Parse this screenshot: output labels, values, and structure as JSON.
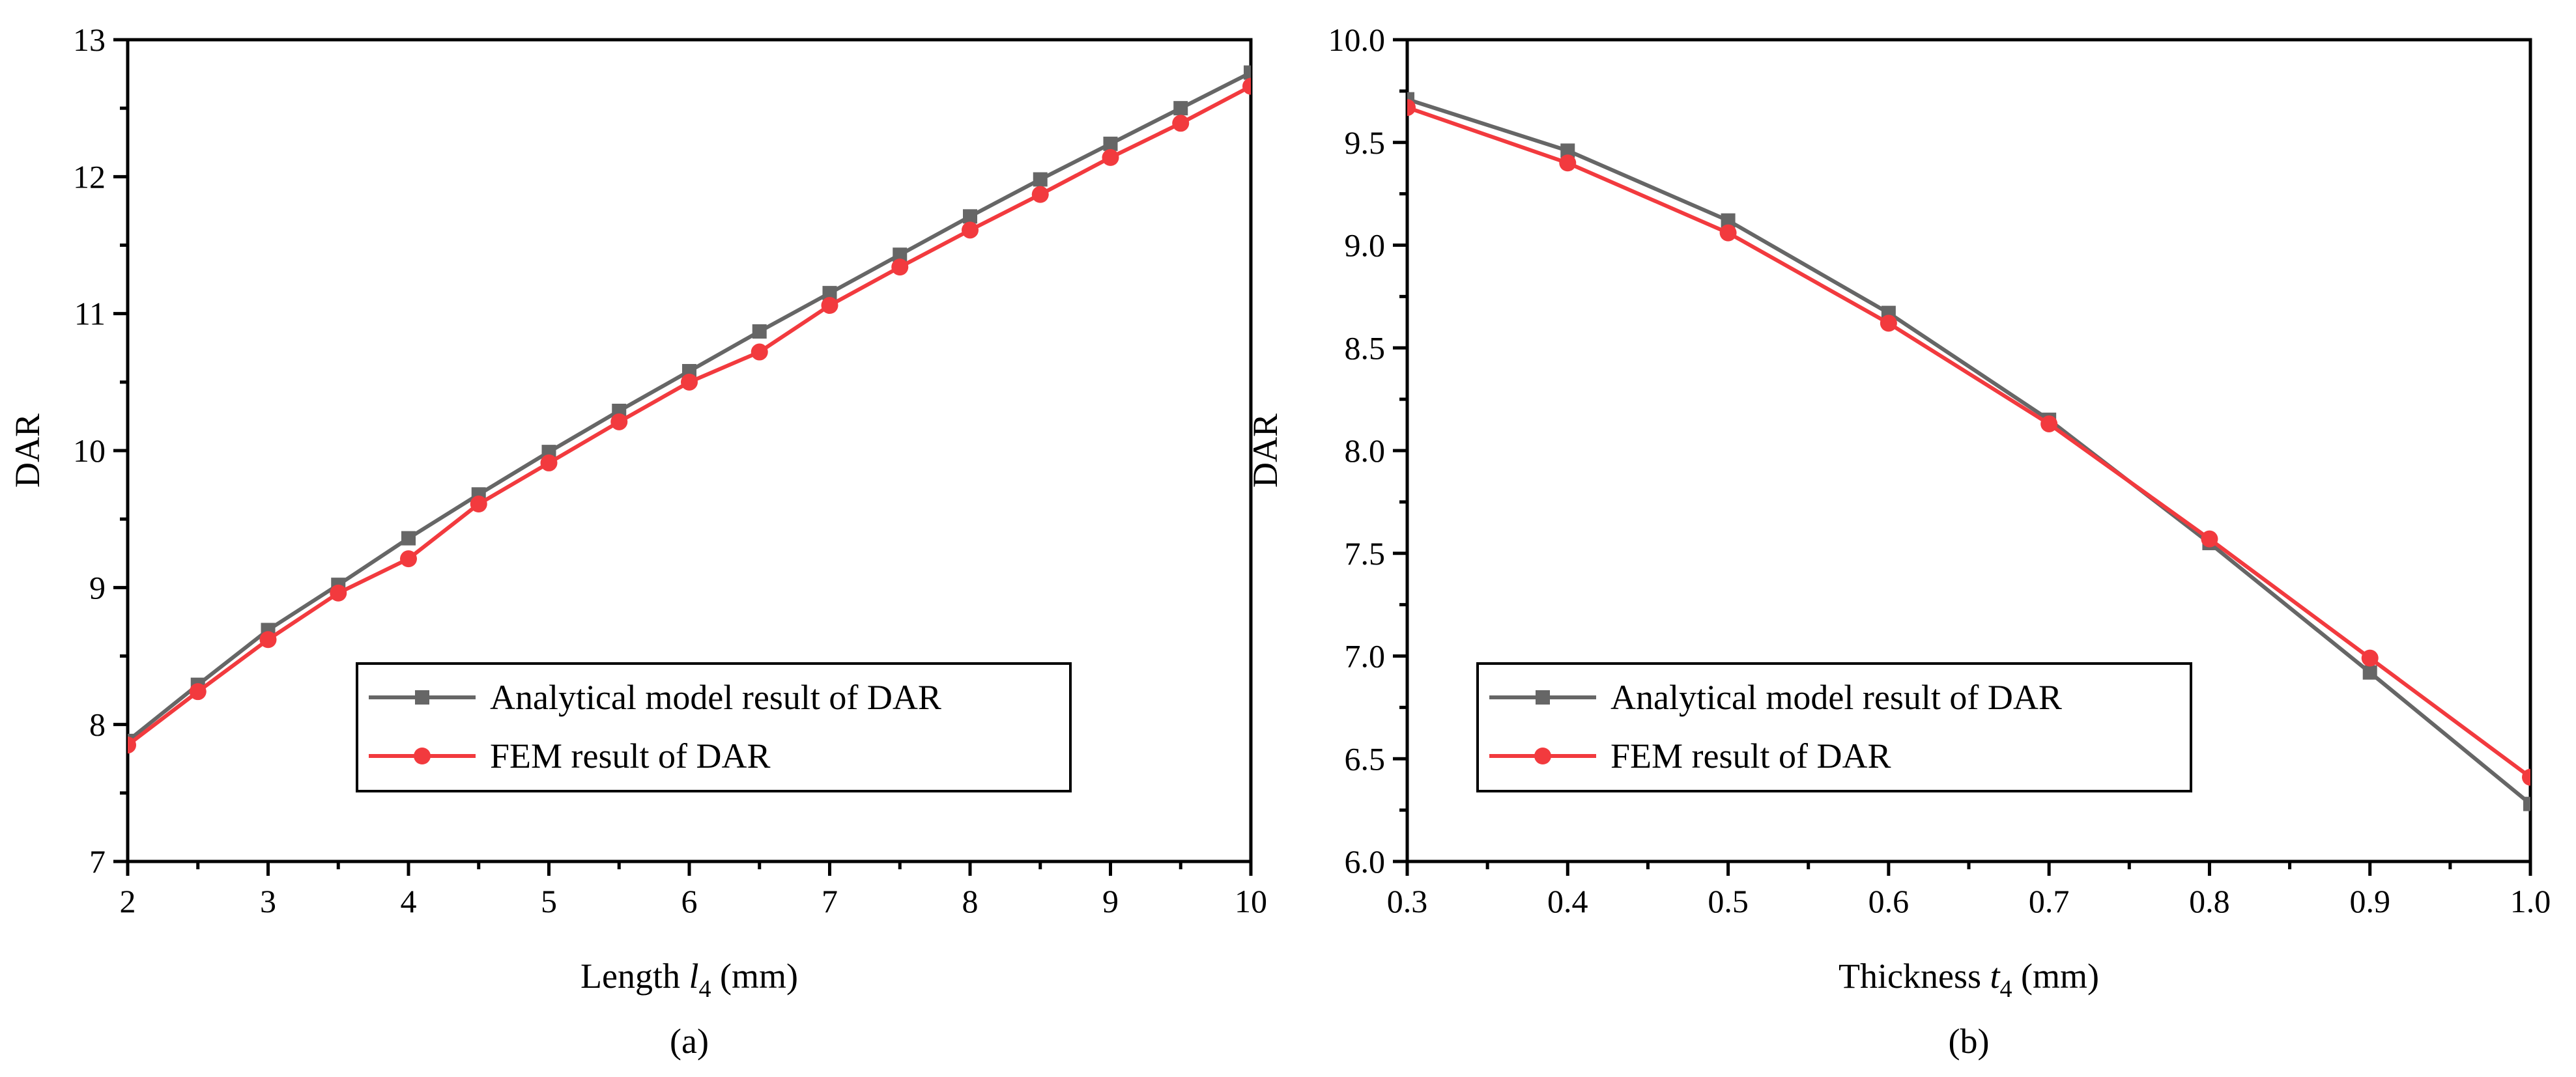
{
  "colors": {
    "analytical": "#666666",
    "fem": "#f23a3e",
    "axis": "#000000",
    "background": "#ffffff"
  },
  "chart_data": [
    {
      "type": "line",
      "caption": "(a)",
      "title": "",
      "xlabel": "Length l4 (mm)",
      "xlabel_parts": {
        "prefix": "Length ",
        "var": "l",
        "sub": "4",
        "suffix": " (mm)"
      },
      "ylabel": "DAR",
      "xlim": [
        2,
        10
      ],
      "ylim": [
        7,
        13
      ],
      "xticks": [
        2,
        3,
        4,
        5,
        6,
        7,
        8,
        9,
        10
      ],
      "xticks_minor": [
        2.5,
        3.5,
        4.5,
        5.5,
        6.5,
        7.5,
        8.5,
        9.5
      ],
      "yticks": [
        7,
        8,
        9,
        10,
        11,
        12,
        13
      ],
      "grid": false,
      "legend_position": "bottom-right",
      "x": [
        2,
        2.5,
        3,
        3.5,
        4,
        4.5,
        5,
        5.5,
        6,
        6.5,
        7,
        7.5,
        8,
        8.5,
        9,
        9.5,
        10
      ],
      "series": [
        {
          "name": "Analytical model result of DAR",
          "marker": "square",
          "color_key": "analytical",
          "values": [
            7.88,
            8.29,
            8.69,
            9.02,
            9.36,
            9.68,
            9.99,
            10.29,
            10.58,
            10.87,
            11.15,
            11.43,
            11.71,
            11.98,
            12.24,
            12.5,
            12.76
          ]
        },
        {
          "name": "FEM result of DAR",
          "marker": "circle",
          "color_key": "fem",
          "values": [
            7.85,
            8.24,
            8.62,
            8.96,
            9.21,
            9.61,
            9.91,
            10.21,
            10.5,
            10.72,
            11.06,
            11.34,
            11.61,
            11.87,
            12.14,
            12.39,
            12.66
          ]
        }
      ]
    },
    {
      "type": "line",
      "caption": "(b)",
      "title": "",
      "xlabel": "Thickness t4 (mm)",
      "xlabel_parts": {
        "prefix": "Thickness ",
        "var": "t",
        "sub": "4",
        "suffix": " (mm)"
      },
      "ylabel": "DAR",
      "xlim": [
        0.3,
        1.0
      ],
      "ylim": [
        6.0,
        10.0
      ],
      "xticks": [
        0.3,
        0.4,
        0.5,
        0.6,
        0.7,
        0.8,
        0.9,
        1.0
      ],
      "xticks_minor": [
        0.35,
        0.45,
        0.55,
        0.65,
        0.75,
        0.85,
        0.95
      ],
      "yticks": [
        6.0,
        6.5,
        7.0,
        7.5,
        8.0,
        8.5,
        9.0,
        9.5,
        10.0
      ],
      "grid": false,
      "legend_position": "bottom-left",
      "x": [
        0.3,
        0.4,
        0.5,
        0.6,
        0.7,
        0.8,
        0.9,
        1.0
      ],
      "series": [
        {
          "name": "Analytical model result of DAR",
          "marker": "square",
          "color_key": "analytical",
          "values": [
            9.71,
            9.46,
            9.12,
            8.67,
            8.15,
            7.55,
            6.92,
            6.28
          ]
        },
        {
          "name": "FEM result of DAR",
          "marker": "circle",
          "color_key": "fem",
          "values": [
            9.67,
            9.4,
            9.06,
            8.62,
            8.13,
            7.57,
            6.99,
            6.41
          ]
        }
      ]
    }
  ]
}
